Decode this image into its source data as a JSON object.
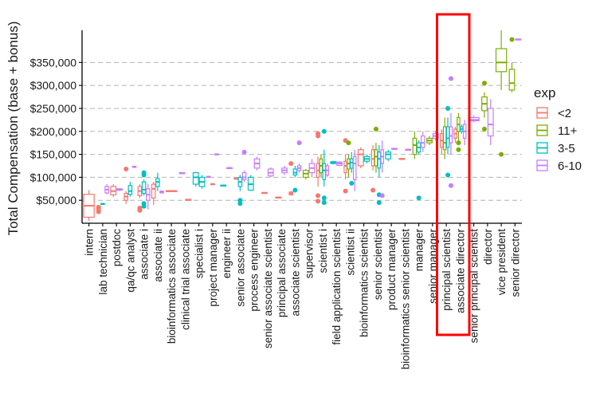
{
  "chart_data": {
    "type": "boxplot",
    "title": "",
    "xlabel": "",
    "ylabel": "Total Compensation (base + bonus)",
    "ylim": [
      0,
      420000
    ],
    "yticks": [
      50000,
      100000,
      150000,
      200000,
      250000,
      300000,
      350000
    ],
    "ytick_labels": [
      "$50,000",
      "$100,000",
      "$150,000",
      "$200,000",
      "$250,000",
      "$300,000",
      "$350,000"
    ],
    "grid": "horizontal dashed",
    "legend": {
      "title": "exp",
      "position": "right",
      "entries": [
        {
          "name": "<2",
          "color": "#F8766D"
        },
        {
          "name": "11+",
          "color": "#7CAE00"
        },
        {
          "name": "3-5",
          "color": "#00BFC4"
        },
        {
          "name": "6-10",
          "color": "#C77CFF"
        }
      ]
    },
    "highlight": {
      "categories": [
        "principal scientist",
        "associate director"
      ],
      "color": "#ff0000"
    },
    "categories": [
      "intern",
      "lab technician",
      "postdoc",
      "qa/qc analyst",
      "associate i",
      "associate ii",
      "bioinformatics associate",
      "clinical trial associate",
      "specialist i",
      "project manager",
      "engineer ii",
      "senior associate",
      "process engineer",
      "senior associate scientist",
      "principal associate",
      "associate scientist",
      "supervisor",
      "scientist i",
      "field application scientist",
      "scientist ii",
      "bioinformatics scientist",
      "senior scientist",
      "product manager",
      "bioinformatics senior scientist",
      "manager",
      "senior manager",
      "principal scientist",
      "associate director",
      "senior principal scientist",
      "director",
      "vice president",
      "senior director"
    ],
    "boxes": [
      {
        "category": "intern",
        "series": "<2",
        "min": 5000,
        "q1": 13000,
        "median": 38000,
        "q3": 63000,
        "max": 72000,
        "outliers": []
      },
      {
        "category": "lab technician",
        "series": "<2",
        "min": 26000,
        "q1": 28000,
        "median": 30000,
        "q3": 33000,
        "max": 35000,
        "outliers": [
          25000,
          35000
        ]
      },
      {
        "category": "lab technician",
        "series": "3-5",
        "min": 40000,
        "q1": 41000,
        "median": 42000,
        "q3": 43000,
        "max": 44000,
        "outliers": []
      },
      {
        "category": "lab technician",
        "series": "6-10",
        "min": 63000,
        "q1": 66000,
        "median": 73000,
        "q3": 80000,
        "max": 85000,
        "outliers": []
      },
      {
        "category": "postdoc",
        "series": "<2",
        "min": 57000,
        "q1": 62000,
        "median": 70000,
        "q3": 80000,
        "max": 85000,
        "outliers": []
      },
      {
        "category": "postdoc",
        "series": "6-10",
        "min": 70000,
        "q1": 72000,
        "median": 73000,
        "q3": 75000,
        "max": 76000,
        "outliers": []
      },
      {
        "category": "qa/qc analyst",
        "series": "<2",
        "min": 42000,
        "q1": 50000,
        "median": 58000,
        "q3": 65000,
        "max": 70000,
        "outliers": [
          118000
        ]
      },
      {
        "category": "qa/qc analyst",
        "series": "3-5",
        "min": 58000,
        "q1": 63000,
        "median": 70000,
        "q3": 82000,
        "max": 90000,
        "outliers": []
      },
      {
        "category": "qa/qc analyst",
        "series": "6-10",
        "min": 120000,
        "q1": 122000,
        "median": 123000,
        "q3": 124000,
        "max": 125000,
        "outliers": []
      },
      {
        "category": "associate i",
        "series": "<2",
        "min": 55000,
        "q1": 60000,
        "median": 70000,
        "q3": 80000,
        "max": 85000,
        "outliers": [
          33000,
          30000,
          28000
        ]
      },
      {
        "category": "associate i",
        "series": "3-5",
        "min": 60000,
        "q1": 65000,
        "median": 73000,
        "q3": 90000,
        "max": 95000,
        "outliers": [
          37000,
          43000,
          110000,
          105000
        ]
      },
      {
        "category": "associate i",
        "series": "6-10",
        "min": 30000,
        "q1": 50000,
        "median": 62000,
        "q3": 75000,
        "max": 86000,
        "outliers": []
      },
      {
        "category": "associate ii",
        "series": "<2",
        "min": 40000,
        "q1": 55000,
        "median": 75000,
        "q3": 85000,
        "max": 90000,
        "outliers": []
      },
      {
        "category": "associate ii",
        "series": "3-5",
        "min": 70000,
        "q1": 80000,
        "median": 90000,
        "q3": 97000,
        "max": 110000,
        "outliers": []
      },
      {
        "category": "associate ii",
        "series": "6-10",
        "min": 65000,
        "q1": 66000,
        "median": 68000,
        "q3": 70000,
        "max": 71000,
        "outliers": []
      },
      {
        "category": "bioinformatics associate",
        "series": "<2",
        "min": 68000,
        "q1": 69000,
        "median": 70000,
        "q3": 71000,
        "max": 72000,
        "outliers": []
      },
      {
        "category": "clinical trial associate",
        "series": "6-10",
        "min": 107000,
        "q1": 108000,
        "median": 109000,
        "q3": 110000,
        "max": 111000,
        "outliers": []
      },
      {
        "category": "clinical trial associate",
        "series": "<2",
        "min": 49000,
        "q1": 50000,
        "median": 51000,
        "q3": 52000,
        "max": 53000,
        "outliers": []
      },
      {
        "category": "specialist i",
        "series": "3-5",
        "min": 80000,
        "q1": 85000,
        "median": 100000,
        "q3": 110000,
        "max": 112000,
        "outliers": []
      },
      {
        "category": "specialist i",
        "series": "3-5",
        "min": 75000,
        "q1": 80000,
        "median": 90000,
        "q3": 100000,
        "max": 105000,
        "outliers": []
      },
      {
        "category": "project manager",
        "series": "6-10",
        "min": 99000,
        "q1": 100000,
        "median": 101000,
        "q3": 102000,
        "max": 103000,
        "outliers": []
      },
      {
        "category": "project manager",
        "series": "<2",
        "min": 83000,
        "q1": 84000,
        "median": 85000,
        "q3": 86000,
        "max": 87000,
        "outliers": []
      },
      {
        "category": "project manager",
        "series": "6-10",
        "min": 148000,
        "q1": 149000,
        "median": 150000,
        "q3": 151000,
        "max": 152000,
        "outliers": []
      },
      {
        "category": "engineer ii",
        "series": "3-5",
        "min": 80000,
        "q1": 81000,
        "median": 82000,
        "q3": 83000,
        "max": 84000,
        "outliers": []
      },
      {
        "category": "engineer ii",
        "series": "6-10",
        "min": 118000,
        "q1": 119000,
        "median": 120000,
        "q3": 121000,
        "max": 122000,
        "outliers": []
      },
      {
        "category": "senior associate",
        "series": "<2",
        "min": 95000,
        "q1": 96000,
        "median": 97000,
        "q3": 98000,
        "max": 99000,
        "outliers": []
      },
      {
        "category": "senior associate",
        "series": "3-5",
        "min": 70000,
        "q1": 80000,
        "median": 90000,
        "q3": 100000,
        "max": 105000,
        "outliers": [
          43000,
          50000
        ]
      },
      {
        "category": "senior associate",
        "series": "6-10",
        "min": 90000,
        "q1": 95000,
        "median": 100000,
        "q3": 110000,
        "max": 115000,
        "outliers": [
          155000
        ]
      },
      {
        "category": "process engineer",
        "series": "3-5",
        "min": 70000,
        "q1": 72000,
        "median": 85000,
        "q3": 100000,
        "max": 105000,
        "outliers": []
      },
      {
        "category": "process engineer",
        "series": "6-10",
        "min": 115000,
        "q1": 120000,
        "median": 130000,
        "q3": 140000,
        "max": 145000,
        "outliers": []
      },
      {
        "category": "senior associate scientist",
        "series": "<2",
        "min": 64000,
        "q1": 65000,
        "median": 66000,
        "q3": 67000,
        "max": 68000,
        "outliers": []
      },
      {
        "category": "senior associate scientist",
        "series": "6-10",
        "min": 100000,
        "q1": 103000,
        "median": 110000,
        "q3": 118000,
        "max": 122000,
        "outliers": []
      },
      {
        "category": "principal associate",
        "series": "<2",
        "min": 54000,
        "q1": 55000,
        "median": 56000,
        "q3": 57000,
        "max": 58000,
        "outliers": []
      },
      {
        "category": "principal associate",
        "series": "6-10",
        "min": 105000,
        "q1": 110000,
        "median": 115000,
        "q3": 120000,
        "max": 125000,
        "outliers": []
      },
      {
        "category": "associate scientist",
        "series": "<2",
        "min": 60000,
        "q1": 62000,
        "median": 65000,
        "q3": 68000,
        "max": 70000,
        "outliers": [
          130000
        ]
      },
      {
        "category": "associate scientist",
        "series": "3-5",
        "min": 100000,
        "q1": 105000,
        "median": 110000,
        "q3": 118000,
        "max": 125000,
        "outliers": [
          72000
        ]
      },
      {
        "category": "associate scientist",
        "series": "6-10",
        "min": 110000,
        "q1": 115000,
        "median": 120000,
        "q3": 125000,
        "max": 130000,
        "outliers": [
          175000
        ]
      },
      {
        "category": "supervisor",
        "series": "11+",
        "min": 95000,
        "q1": 100000,
        "median": 108000,
        "q3": 115000,
        "max": 118000,
        "outliers": []
      },
      {
        "category": "supervisor",
        "series": "6-10",
        "min": 100000,
        "q1": 110000,
        "median": 120000,
        "q3": 130000,
        "max": 140000,
        "outliers": []
      },
      {
        "category": "scientist i",
        "series": "<2",
        "min": 80000,
        "q1": 100000,
        "median": 115000,
        "q3": 130000,
        "max": 145000,
        "outliers": [
          195000,
          190000,
          60000,
          48000
        ]
      },
      {
        "category": "scientist i",
        "series": "11+",
        "min": 100000,
        "q1": 110000,
        "median": 125000,
        "q3": 140000,
        "max": 150000,
        "outliers": []
      },
      {
        "category": "scientist i",
        "series": "3-5",
        "min": 80000,
        "q1": 95000,
        "median": 115000,
        "q3": 130000,
        "max": 160000,
        "outliers": [
          200000,
          45000,
          55000
        ]
      },
      {
        "category": "scientist i",
        "series": "6-10",
        "min": 100000,
        "q1": 105000,
        "median": 115000,
        "q3": 125000,
        "max": 130000,
        "outliers": []
      },
      {
        "category": "field application scientist",
        "series": "3-5",
        "min": 128000,
        "q1": 130000,
        "median": 132000,
        "q3": 134000,
        "max": 136000,
        "outliers": []
      },
      {
        "category": "field application scientist",
        "series": "6-10",
        "min": 124000,
        "q1": 126000,
        "median": 130000,
        "q3": 133000,
        "max": 135000,
        "outliers": []
      },
      {
        "category": "scientist ii",
        "series": "<2",
        "min": 95000,
        "q1": 110000,
        "median": 125000,
        "q3": 135000,
        "max": 150000,
        "outliers": [
          180000,
          70000
        ]
      },
      {
        "category": "scientist ii",
        "series": "11+",
        "min": 100000,
        "q1": 118000,
        "median": 130000,
        "q3": 140000,
        "max": 150000,
        "outliers": [
          175000
        ]
      },
      {
        "category": "scientist ii",
        "series": "3-5",
        "min": 110000,
        "q1": 120000,
        "median": 132000,
        "q3": 140000,
        "max": 155000,
        "outliers": [
          87000
        ]
      },
      {
        "category": "scientist ii",
        "series": "6-10",
        "min": 70000,
        "q1": 95000,
        "median": 130000,
        "q3": 145000,
        "max": 160000,
        "outliers": []
      },
      {
        "category": "bioinformatics scientist",
        "series": "<2",
        "min": 120000,
        "q1": 125000,
        "median": 150000,
        "q3": 160000,
        "max": 165000,
        "outliers": []
      },
      {
        "category": "bioinformatics scientist",
        "series": "3-5",
        "min": 130000,
        "q1": 135000,
        "median": 140000,
        "q3": 145000,
        "max": 150000,
        "outliers": []
      },
      {
        "category": "senior scientist",
        "series": "<2",
        "min": 115000,
        "q1": 125000,
        "median": 140000,
        "q3": 160000,
        "max": 170000,
        "outliers": [
          72000
        ]
      },
      {
        "category": "senior scientist",
        "series": "11+",
        "min": 110000,
        "q1": 125000,
        "median": 145000,
        "q3": 160000,
        "max": 175000,
        "outliers": [
          205000
        ]
      },
      {
        "category": "senior scientist",
        "series": "3-5",
        "min": 100000,
        "q1": 120000,
        "median": 140000,
        "q3": 155000,
        "max": 170000,
        "outliers": [
          45000,
          62000
        ]
      },
      {
        "category": "senior scientist",
        "series": "6-10",
        "min": 110000,
        "q1": 130000,
        "median": 145000,
        "q3": 160000,
        "max": 180000,
        "outliers": [
          60000
        ]
      },
      {
        "category": "product manager",
        "series": "3-5",
        "min": 135000,
        "q1": 140000,
        "median": 150000,
        "q3": 155000,
        "max": 160000,
        "outliers": []
      },
      {
        "category": "product manager",
        "series": "6-10",
        "min": 160000,
        "q1": 161000,
        "median": 162000,
        "q3": 163000,
        "max": 164000,
        "outliers": []
      },
      {
        "category": "bioinformatics senior scientist",
        "series": "<2",
        "min": 138000,
        "q1": 139000,
        "median": 140000,
        "q3": 141000,
        "max": 142000,
        "outliers": []
      },
      {
        "category": "bioinformatics senior scientist",
        "series": "6-10",
        "min": 158000,
        "q1": 159000,
        "median": 160000,
        "q3": 161000,
        "max": 162000,
        "outliers": []
      },
      {
        "category": "manager",
        "series": "11+",
        "min": 140000,
        "q1": 150000,
        "median": 170000,
        "q3": 185000,
        "max": 200000,
        "outliers": []
      },
      {
        "category": "manager",
        "series": "3-5",
        "min": 150000,
        "q1": 155000,
        "median": 165000,
        "q3": 175000,
        "max": 180000,
        "outliers": [
          55000
        ]
      },
      {
        "category": "manager",
        "series": "6-10",
        "min": 155000,
        "q1": 165000,
        "median": 175000,
        "q3": 190000,
        "max": 200000,
        "outliers": []
      },
      {
        "category": "senior manager",
        "series": "11+",
        "min": 170000,
        "q1": 175000,
        "median": 180000,
        "q3": 185000,
        "max": 190000,
        "outliers": []
      },
      {
        "category": "senior manager",
        "series": "6-10",
        "min": 180000,
        "q1": 185000,
        "median": 190000,
        "q3": 195000,
        "max": 200000,
        "outliers": []
      },
      {
        "category": "principal scientist",
        "series": "<2",
        "min": 150000,
        "q1": 165000,
        "median": 180000,
        "q3": 195000,
        "max": 205000,
        "outliers": []
      },
      {
        "category": "principal scientist",
        "series": "11+",
        "min": 140000,
        "q1": 160000,
        "median": 175000,
        "q3": 210000,
        "max": 230000,
        "outliers": []
      },
      {
        "category": "principal scientist",
        "series": "3-5",
        "min": 150000,
        "q1": 165000,
        "median": 185000,
        "q3": 210000,
        "max": 230000,
        "outliers": [
          250000,
          105000
        ]
      },
      {
        "category": "principal scientist",
        "series": "6-10",
        "min": 150000,
        "q1": 175000,
        "median": 190000,
        "q3": 210000,
        "max": 240000,
        "outliers": [
          315000,
          82000
        ]
      },
      {
        "category": "associate director",
        "series": "<2",
        "min": 175000,
        "q1": 185000,
        "median": 195000,
        "q3": 205000,
        "max": 210000,
        "outliers": []
      },
      {
        "category": "associate director",
        "series": "11+",
        "min": 180000,
        "q1": 200000,
        "median": 215000,
        "q3": 230000,
        "max": 240000,
        "outliers": [
          160000,
          175000
        ]
      },
      {
        "category": "associate director",
        "series": "3-5",
        "min": 195000,
        "q1": 200000,
        "median": 205000,
        "q3": 210000,
        "max": 215000,
        "outliers": []
      },
      {
        "category": "associate director",
        "series": "6-10",
        "min": 170000,
        "q1": 185000,
        "median": 200000,
        "q3": 215000,
        "max": 225000,
        "outliers": []
      },
      {
        "category": "senior principal scientist",
        "series": "6-10",
        "min": 220000,
        "q1": 223000,
        "median": 225000,
        "q3": 230000,
        "max": 235000,
        "outliers": []
      },
      {
        "category": "director",
        "series": "11+",
        "min": 230000,
        "q1": 245000,
        "median": 260000,
        "q3": 275000,
        "max": 285000,
        "outliers": [
          305000,
          205000
        ]
      },
      {
        "category": "director",
        "series": "6-10",
        "min": 170000,
        "q1": 190000,
        "median": 215000,
        "q3": 250000,
        "max": 270000,
        "outliers": []
      },
      {
        "category": "vice president",
        "series": "11+",
        "min": 290000,
        "q1": 330000,
        "median": 350000,
        "q3": 380000,
        "max": 420000,
        "outliers": [
          150000
        ]
      },
      {
        "category": "senior director",
        "series": "11+",
        "min": 285000,
        "q1": 290000,
        "median": 305000,
        "q3": 335000,
        "max": 350000,
        "outliers": [
          400000
        ]
      },
      {
        "category": "senior director",
        "series": "6-10",
        "min": 398000,
        "q1": 399000,
        "median": 400000,
        "q3": 401000,
        "max": 402000,
        "outliers": []
      }
    ]
  }
}
